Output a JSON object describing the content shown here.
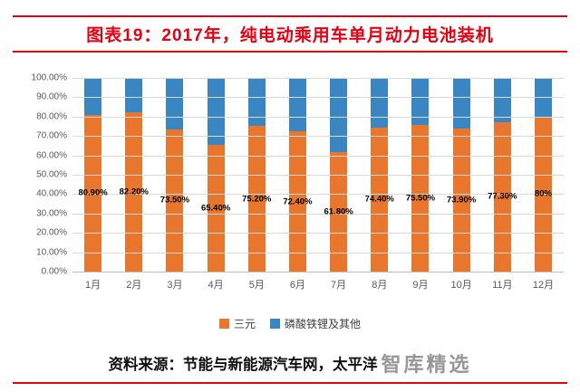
{
  "header": {
    "title": "图表19：2017年，纯电动乘用车单月动力电池装机"
  },
  "chart_data": {
    "type": "bar",
    "stacked": true,
    "percent_stacked": true,
    "title": "2017年，纯电动乘用车单月动力电池装机",
    "categories": [
      "1月",
      "2月",
      "3月",
      "4月",
      "5月",
      "6月",
      "7月",
      "8月",
      "9月",
      "10月",
      "11月",
      "12月"
    ],
    "series": [
      {
        "name": "三元",
        "color": "#e8762c",
        "values": [
          80.9,
          82.2,
          73.5,
          65.4,
          75.2,
          72.4,
          61.8,
          74.4,
          75.5,
          73.9,
          77.3,
          80
        ]
      },
      {
        "name": "磷酸铁锂及其他",
        "color": "#3a86c3",
        "values": [
          19.1,
          17.8,
          26.5,
          34.6,
          24.8,
          27.6,
          38.2,
          25.6,
          24.5,
          26.1,
          22.7,
          20
        ]
      }
    ],
    "data_labels": [
      "80.90%",
      "82.20%",
      "73.50%",
      "65.40%",
      "75.20%",
      "72.40%",
      "61.80%",
      "74.40%",
      "75.50%",
      "73.90%",
      "77.30%",
      "80%"
    ],
    "y_ticks": [
      "100.00%",
      "90.00%",
      "80.00%",
      "70.00%",
      "60.00%",
      "50.00%",
      "40.00%",
      "30.00%",
      "20.00%",
      "10.00%",
      "0.00%"
    ],
    "ylim": [
      0,
      100
    ],
    "xlabel": "",
    "ylabel": "",
    "grid": true,
    "legend_position": "bottom"
  },
  "footer": {
    "source": "资料来源：节能与新能源汽车网，太平洋",
    "watermark": "智库精选"
  },
  "colors": {
    "accent_red": "#e60012",
    "grid": "#d9d9d9"
  }
}
